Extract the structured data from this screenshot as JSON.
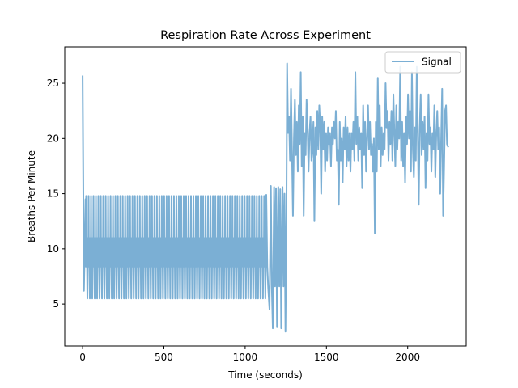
{
  "chart_data": {
    "type": "line",
    "title": "Respiration Rate Across Experiment",
    "xlabel": "Time (seconds)",
    "ylabel": "Breaths Per Minute",
    "xlim": [
      -110,
      2360
    ],
    "ylim": [
      1.2,
      28.3
    ],
    "xticks": [
      0,
      500,
      1000,
      1500,
      2000
    ],
    "yticks": [
      5,
      10,
      15,
      20,
      25
    ],
    "grid": false,
    "legend_position": "top-right",
    "series_color": "#7bafd4",
    "series": [
      {
        "name": "Signal",
        "segments": [
          {
            "description_from_chart": "initial spike",
            "points": [
              [
                0,
                25.7
              ],
              [
                8,
                6.2
              ],
              [
                12,
                9.0
              ],
              [
                18,
                14.5
              ]
            ]
          },
          {
            "pattern": "periodic",
            "x_start": 20,
            "x_end": 1130,
            "period": 15,
            "cycle_values": [
              8.4,
              14.8,
              8.4,
              11.0,
              8.4,
              5.5,
              8.4,
              11.0
            ]
          },
          {
            "points": [
              [
                1130,
                14.9
              ],
              [
                1136,
                8.4
              ],
              [
                1142,
                6.4
              ],
              [
                1150,
                4.5
              ],
              [
                1158,
                15.7
              ],
              [
                1164,
                6.6
              ],
              [
                1170,
                2.8
              ],
              [
                1178,
                15.6
              ],
              [
                1184,
                6.6
              ],
              [
                1190,
                15.5
              ],
              [
                1196,
                2.9
              ],
              [
                1204,
                15.6
              ],
              [
                1210,
                6.6
              ],
              [
                1216,
                15.4
              ],
              [
                1222,
                2.8
              ],
              [
                1230,
                15.6
              ],
              [
                1236,
                6.6
              ],
              [
                1242,
                15.0
              ],
              [
                1248,
                2.5
              ],
              [
                1254,
                13.0
              ],
              [
                1258,
                26.8
              ],
              [
                1264,
                20.5
              ],
              [
                1270,
                22.0
              ],
              [
                1276,
                18.0
              ],
              [
                1282,
                24.5
              ],
              [
                1288,
                19.0
              ],
              [
                1294,
                13.0
              ],
              [
                1300,
                20.0
              ],
              [
                1306,
                23.5
              ],
              [
                1312,
                18.5
              ],
              [
                1318,
                21.5
              ],
              [
                1324,
                17.0
              ],
              [
                1330,
                23.0
              ],
              [
                1336,
                19.5
              ],
              [
                1342,
                26.0
              ],
              [
                1348,
                17.5
              ],
              [
                1354,
                22.0
              ],
              [
                1360,
                13.0
              ],
              [
                1366,
                20.5
              ],
              [
                1372,
                18.5
              ],
              [
                1378,
                23.5
              ],
              [
                1384,
                21.0
              ],
              [
                1390,
                17.0
              ],
              [
                1396,
                20.5
              ],
              [
                1402,
                22.0
              ],
              [
                1408,
                18.0
              ],
              [
                1414,
                19.0
              ],
              [
                1420,
                21.5
              ],
              [
                1426,
                12.5
              ],
              [
                1432,
                21.0
              ],
              [
                1438,
                18.5
              ],
              [
                1444,
                22.5
              ],
              [
                1450,
                19.0
              ],
              [
                1456,
                23.0
              ],
              [
                1462,
                21.0
              ],
              [
                1468,
                15.0
              ],
              [
                1474,
                22.0
              ],
              [
                1480,
                19.0
              ],
              [
                1486,
                21.5
              ],
              [
                1492,
                17.0
              ],
              [
                1498,
                20.5
              ],
              [
                1504,
                18.0
              ],
              [
                1510,
                21.0
              ],
              [
                1516,
                19.5
              ],
              [
                1522,
                20.5
              ],
              [
                1528,
                17.5
              ],
              [
                1534,
                21.0
              ],
              [
                1540,
                19.5
              ],
              [
                1546,
                21.5
              ],
              [
                1552,
                20.0
              ],
              [
                1558,
                22.5
              ],
              [
                1564,
                18.0
              ],
              [
                1570,
                19.0
              ],
              [
                1576,
                14.0
              ],
              [
                1582,
                21.5
              ],
              [
                1588,
                18.0
              ],
              [
                1594,
                20.0
              ],
              [
                1600,
                16.0
              ],
              [
                1606,
                21.0
              ],
              [
                1612,
                19.0
              ],
              [
                1618,
                22.0
              ],
              [
                1624,
                17.5
              ],
              [
                1630,
                21.0
              ],
              [
                1636,
                18.0
              ],
              [
                1642,
                20.5
              ],
              [
                1648,
                17.0
              ],
              [
                1654,
                20.5
              ],
              [
                1660,
                19.0
              ],
              [
                1666,
                21.5
              ],
              [
                1672,
                18.0
              ],
              [
                1678,
                26.0
              ],
              [
                1684,
                19.5
              ],
              [
                1690,
                22.0
              ],
              [
                1696,
                18.0
              ],
              [
                1702,
                21.0
              ],
              [
                1708,
                19.0
              ],
              [
                1714,
                20.5
              ],
              [
                1720,
                15.5
              ],
              [
                1726,
                23.0
              ],
              [
                1732,
                18.5
              ],
              [
                1738,
                21.5
              ],
              [
                1744,
                17.0
              ],
              [
                1750,
                20.0
              ],
              [
                1756,
                23.0
              ],
              [
                1762,
                19.0
              ],
              [
                1768,
                21.5
              ],
              [
                1774,
                18.5
              ],
              [
                1780,
                19.5
              ],
              [
                1786,
                17.0
              ],
              [
                1792,
                20.0
              ],
              [
                1798,
                11.4
              ],
              [
                1804,
                21.5
              ],
              [
                1810,
                17.0
              ],
              [
                1816,
                25.5
              ],
              [
                1822,
                19.0
              ],
              [
                1828,
                23.0
              ],
              [
                1834,
                17.5
              ],
              [
                1840,
                21.0
              ],
              [
                1846,
                18.5
              ],
              [
                1852,
                20.5
              ],
              [
                1858,
                19.0
              ],
              [
                1864,
                25.0
              ],
              [
                1870,
                21.0
              ],
              [
                1876,
                22.5
              ],
              [
                1882,
                18.0
              ],
              [
                1888,
                21.5
              ],
              [
                1894,
                19.5
              ],
              [
                1900,
                22.5
              ],
              [
                1906,
                18.0
              ],
              [
                1912,
                24.0
              ],
              [
                1918,
                20.5
              ],
              [
                1924,
                17.5
              ],
              [
                1930,
                23.0
              ],
              [
                1936,
                19.0
              ],
              [
                1942,
                21.5
              ],
              [
                1948,
                20.0
              ],
              [
                1954,
                26.5
              ],
              [
                1960,
                18.0
              ],
              [
                1966,
                21.5
              ],
              [
                1972,
                17.5
              ],
              [
                1978,
                20.5
              ],
              [
                1984,
                16.0
              ],
              [
                1990,
                22.0
              ],
              [
                1996,
                19.5
              ],
              [
                2002,
                24.0
              ],
              [
                2008,
                20.0
              ],
              [
                2014,
                22.5
              ],
              [
                2020,
                17.0
              ],
              [
                2026,
                26.0
              ],
              [
                2032,
                19.0
              ],
              [
                2038,
                16.5
              ],
              [
                2044,
                21.0
              ],
              [
                2050,
                18.0
              ],
              [
                2056,
                26.5
              ],
              [
                2062,
                20.5
              ],
              [
                2068,
                14.0
              ],
              [
                2074,
                21.0
              ],
              [
                2080,
                24.0
              ],
              [
                2086,
                18.5
              ],
              [
                2092,
                21.5
              ],
              [
                2098,
                19.0
              ],
              [
                2104,
                22.0
              ],
              [
                2110,
                15.5
              ],
              [
                2116,
                20.5
              ],
              [
                2122,
                18.0
              ],
              [
                2128,
                24.0
              ],
              [
                2134,
                19.5
              ],
              [
                2140,
                21.0
              ],
              [
                2146,
                17.0
              ],
              [
                2152,
                20.5
              ],
              [
                2158,
                19.0
              ],
              [
                2164,
                23.0
              ],
              [
                2170,
                16.5
              ],
              [
                2176,
                20.5
              ],
              [
                2182,
                22.5
              ],
              [
                2188,
                19.0
              ],
              [
                2194,
                21.0
              ],
              [
                2200,
                15.0
              ],
              [
                2206,
                20.0
              ],
              [
                2212,
                24.5
              ],
              [
                2218,
                13.0
              ],
              [
                2224,
                17.5
              ],
              [
                2230,
                22.5
              ],
              [
                2236,
                23.0
              ],
              [
                2242,
                19.5
              ],
              [
                2250,
                19.2
              ]
            ]
          }
        ]
      }
    ]
  }
}
